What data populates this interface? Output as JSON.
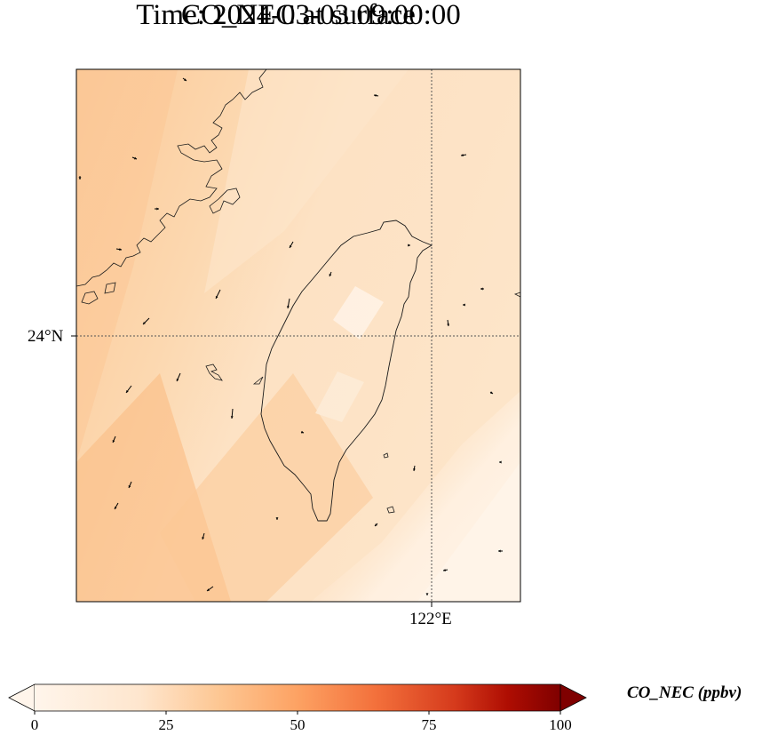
{
  "title": {
    "line1": "CO_NEC at surface",
    "line2": "Time: 2024-03-03 09:00:00"
  },
  "gridlines": {
    "lat_label": "24°N",
    "lon_label": "122°E"
  },
  "colorbar": {
    "label": "CO_NEC (ppbv)",
    "ticks": [
      "0",
      "25",
      "50",
      "75",
      "100"
    ],
    "min": 0,
    "max": 100,
    "extend": "both",
    "colormap": [
      "#fff5eb",
      "#fdd9b5",
      "#fdae6b",
      "#f16d3f",
      "#d22e1e",
      "#7f0000"
    ]
  },
  "map": {
    "field_colors": {
      "light": "#fff1e0",
      "mid": "#fde0bf",
      "strong": "#fbc58e"
    },
    "coastline_color": "#1a1a1a"
  }
}
